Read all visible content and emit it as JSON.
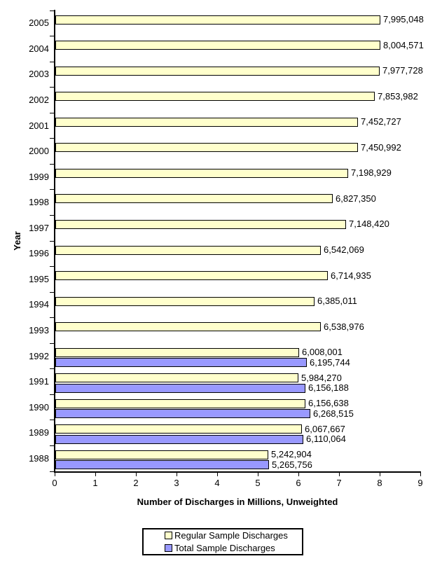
{
  "chart_data": {
    "type": "bar",
    "orientation": "horizontal",
    "title": "",
    "xlabel": "Number of Discharges in Millions, Unweighted",
    "ylabel": "Year",
    "xlim": [
      0,
      9
    ],
    "x_tick_labels": [
      "0",
      "1",
      "2",
      "3",
      "4",
      "5",
      "6",
      "7",
      "8",
      "9"
    ],
    "grid": "off",
    "legend_position": "bottom",
    "axis_color": "#000000",
    "categories": [
      "2005",
      "2004",
      "2003",
      "2002",
      "2001",
      "2000",
      "1999",
      "1998",
      "1997",
      "1996",
      "1995",
      "1994",
      "1993",
      "1992",
      "1991",
      "1990",
      "1989",
      "1988"
    ],
    "series": [
      {
        "name": "Regular Sample Discharges",
        "color": "#FFFFCC",
        "border_color": "#000000",
        "values": [
          7995048,
          8004571,
          7977728,
          7853982,
          7452727,
          7450992,
          7198929,
          6827350,
          7148420,
          6542069,
          6714935,
          6385011,
          6538976,
          6008001,
          5984270,
          6156638,
          6067667,
          5242904
        ],
        "labels": [
          "7,995,048",
          "8,004,571",
          "7,977,728",
          "7,853,982",
          "7,452,727",
          "7,450,992",
          "7,198,929",
          "6,827,350",
          "7,148,420",
          "6,542,069",
          "6,714,935",
          "6,385,011",
          "6,538,976",
          "6,008,001",
          "5,984,270",
          "6,156,638",
          "6,067,667",
          "5,242,904"
        ]
      },
      {
        "name": "Total Sample Discharges",
        "color": "#9999FF",
        "border_color": "#000000",
        "values": [
          null,
          null,
          null,
          null,
          null,
          null,
          null,
          null,
          null,
          null,
          null,
          null,
          null,
          6195744,
          6156188,
          6268515,
          6110064,
          5265756
        ],
        "labels": [
          null,
          null,
          null,
          null,
          null,
          null,
          null,
          null,
          null,
          null,
          null,
          null,
          null,
          "6,195,744",
          "6,156,188",
          "6,268,515",
          "6,110,064",
          "5,265,756"
        ]
      }
    ]
  }
}
